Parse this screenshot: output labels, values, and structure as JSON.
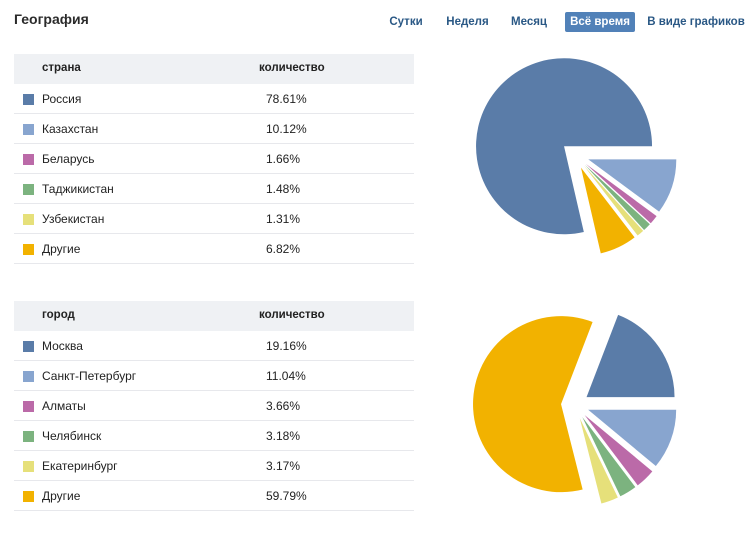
{
  "header": {
    "title": "География",
    "tabs": [
      {
        "label": "Сутки",
        "active": false
      },
      {
        "label": "Неделя",
        "active": false
      },
      {
        "label": "Месяц",
        "active": false
      },
      {
        "label": "Всё время",
        "active": true
      },
      {
        "label": "В виде графиков",
        "active": false
      }
    ]
  },
  "colors": [
    "#5a7ca8",
    "#88a5cf",
    "#bb6aa8",
    "#7cb37f",
    "#e6e07a",
    "#f2b200"
  ],
  "country_table": {
    "col_name": "страна",
    "col_value": "количество",
    "rows": [
      {
        "name": "Россия",
        "value": "78.61%",
        "color": "#5a7ca8"
      },
      {
        "name": "Казахстан",
        "value": "10.12%",
        "color": "#88a5cf"
      },
      {
        "name": "Беларусь",
        "value": "1.66%",
        "color": "#bb6aa8"
      },
      {
        "name": "Таджикистан",
        "value": "1.48%",
        "color": "#7cb37f"
      },
      {
        "name": "Узбекистан",
        "value": "1.31%",
        "color": "#e6e07a"
      },
      {
        "name": "Другие",
        "value": "6.82%",
        "color": "#f2b200"
      }
    ]
  },
  "city_table": {
    "col_name": "город",
    "col_value": "количество",
    "rows": [
      {
        "name": "Москва",
        "value": "19.16%",
        "color": "#5a7ca8"
      },
      {
        "name": "Санкт-Петербург",
        "value": "11.04%",
        "color": "#88a5cf"
      },
      {
        "name": "Алматы",
        "value": "3.66%",
        "color": "#bb6aa8"
      },
      {
        "name": "Челябинск",
        "value": "3.18%",
        "color": "#7cb37f"
      },
      {
        "name": "Екатеринбург",
        "value": "3.17%",
        "color": "#e6e07a"
      },
      {
        "name": "Другие",
        "value": "59.79%",
        "color": "#f2b200"
      }
    ]
  },
  "chart_data": [
    {
      "type": "pie",
      "categories": [
        "Россия",
        "Казахстан",
        "Беларусь",
        "Таджикистан",
        "Узбекистан",
        "Другие"
      ],
      "values": [
        78.61,
        10.12,
        1.66,
        1.48,
        1.31,
        6.82
      ],
      "colors": [
        "#5a7ca8",
        "#88a5cf",
        "#bb6aa8",
        "#7cb37f",
        "#e6e07a",
        "#f2b200"
      ],
      "exploded": true
    },
    {
      "type": "pie",
      "categories": [
        "Москва",
        "Санкт-Петербург",
        "Алматы",
        "Челябинск",
        "Екатеринбург",
        "Другие"
      ],
      "values": [
        19.16,
        11.04,
        3.66,
        3.18,
        3.17,
        59.79
      ],
      "colors": [
        "#5a7ca8",
        "#88a5cf",
        "#bb6aa8",
        "#7cb37f",
        "#e6e07a",
        "#f2b200"
      ],
      "exploded": true
    }
  ]
}
